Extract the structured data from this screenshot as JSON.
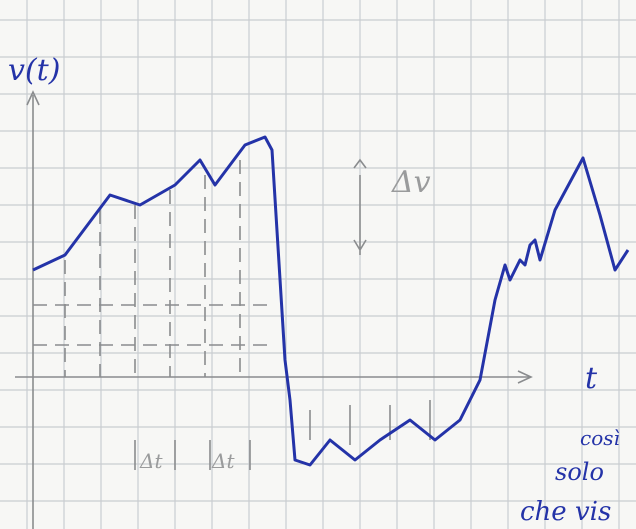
{
  "labels": {
    "y_axis": "v(t)",
    "x_axis": "t",
    "delta_v": "Δv",
    "delta_t": [
      "Δt",
      "Δt"
    ]
  },
  "note": [
    "così",
    "solo",
    "che vis"
  ]
}
